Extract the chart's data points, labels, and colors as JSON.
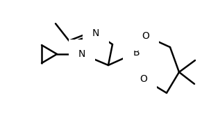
{
  "background_color": "#ffffff",
  "line_color": "#000000",
  "line_width": 1.8,
  "font_size": 10,
  "figsize": [
    2.91,
    1.86
  ],
  "dpi": 100,
  "xlim": [
    0,
    291
  ],
  "ylim": [
    0,
    186
  ]
}
